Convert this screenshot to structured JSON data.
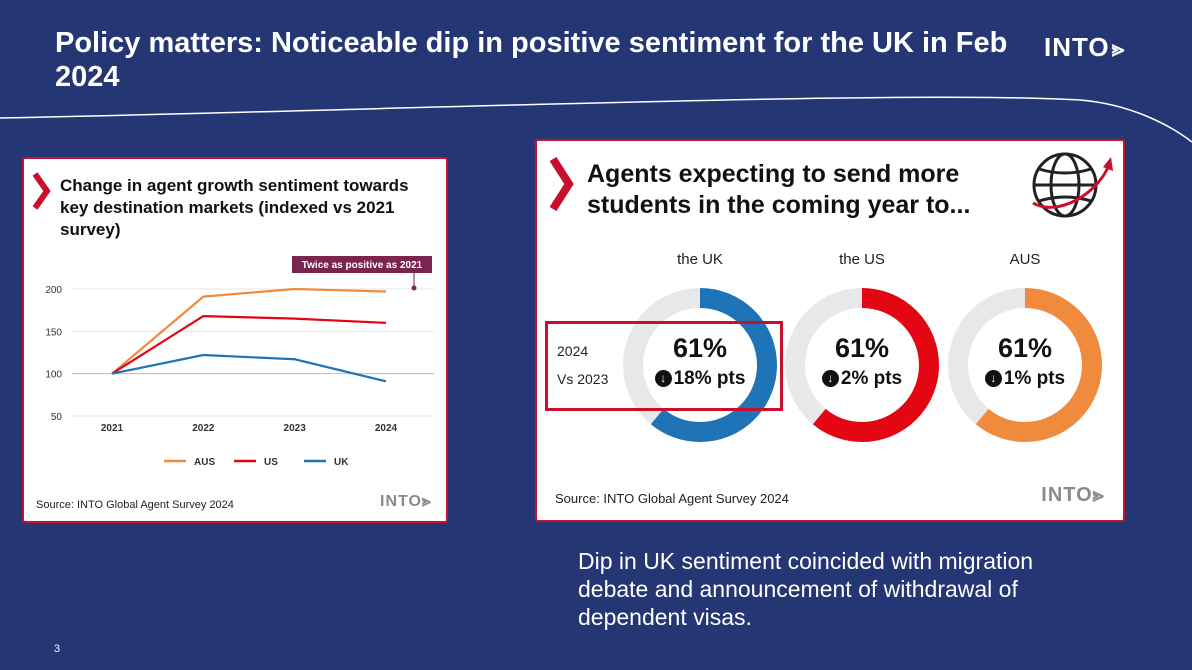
{
  "page": {
    "title": "Policy matters: Noticeable dip in positive sentiment for the UK in Feb 2024",
    "brand": "INTO",
    "number": "3",
    "annotation": "Dip in UK sentiment coincided with migration debate and announcement of withdrawal of dependent visas."
  },
  "left_card": {
    "title": "Change in agent growth sentiment towards key destination markets (indexed vs 2021 survey)",
    "source": "Source: INTO Global Agent Survey 2024",
    "logo": "INTO",
    "callout": "Twice as positive as 2021"
  },
  "right_card": {
    "title": "Agents expecting to send more students in the coming year to...",
    "source": "Source: INTO Global Agent Survey 2024",
    "logo": "INTO",
    "row_labels": {
      "current": "2024",
      "compare": "Vs 2023"
    },
    "icon": "globe-arrow-icon"
  },
  "colors": {
    "AUS": "#f08a3c",
    "US": "#e30613",
    "UK": "#1f73b7",
    "track": "#e8e8e8",
    "accent": "#c8102e",
    "background": "#243673",
    "callout_bg": "#7b2450"
  },
  "chart_data": [
    {
      "type": "line",
      "x": [
        "2021",
        "2022",
        "2023",
        "2024"
      ],
      "ylim": [
        50,
        200
      ],
      "yticks": [
        200,
        150,
        100,
        50
      ],
      "series": [
        {
          "name": "AUS",
          "values": [
            100,
            191,
            200,
            197
          ]
        },
        {
          "name": "US",
          "values": [
            100,
            168,
            165,
            160
          ]
        },
        {
          "name": "UK",
          "values": [
            100,
            122,
            117,
            91
          ]
        }
      ],
      "legend_position": "bottom",
      "grid": true
    },
    {
      "type": "pie",
      "variant": "donut",
      "items": [
        {
          "label": "the UK",
          "value": 61,
          "change": "18% pts",
          "direction": "down"
        },
        {
          "label": "the US",
          "value": 61,
          "change": "2% pts",
          "direction": "down"
        },
        {
          "label": "AUS",
          "value": 61,
          "change": "1% pts",
          "direction": "down"
        }
      ],
      "pct_suffix": "%"
    }
  ]
}
